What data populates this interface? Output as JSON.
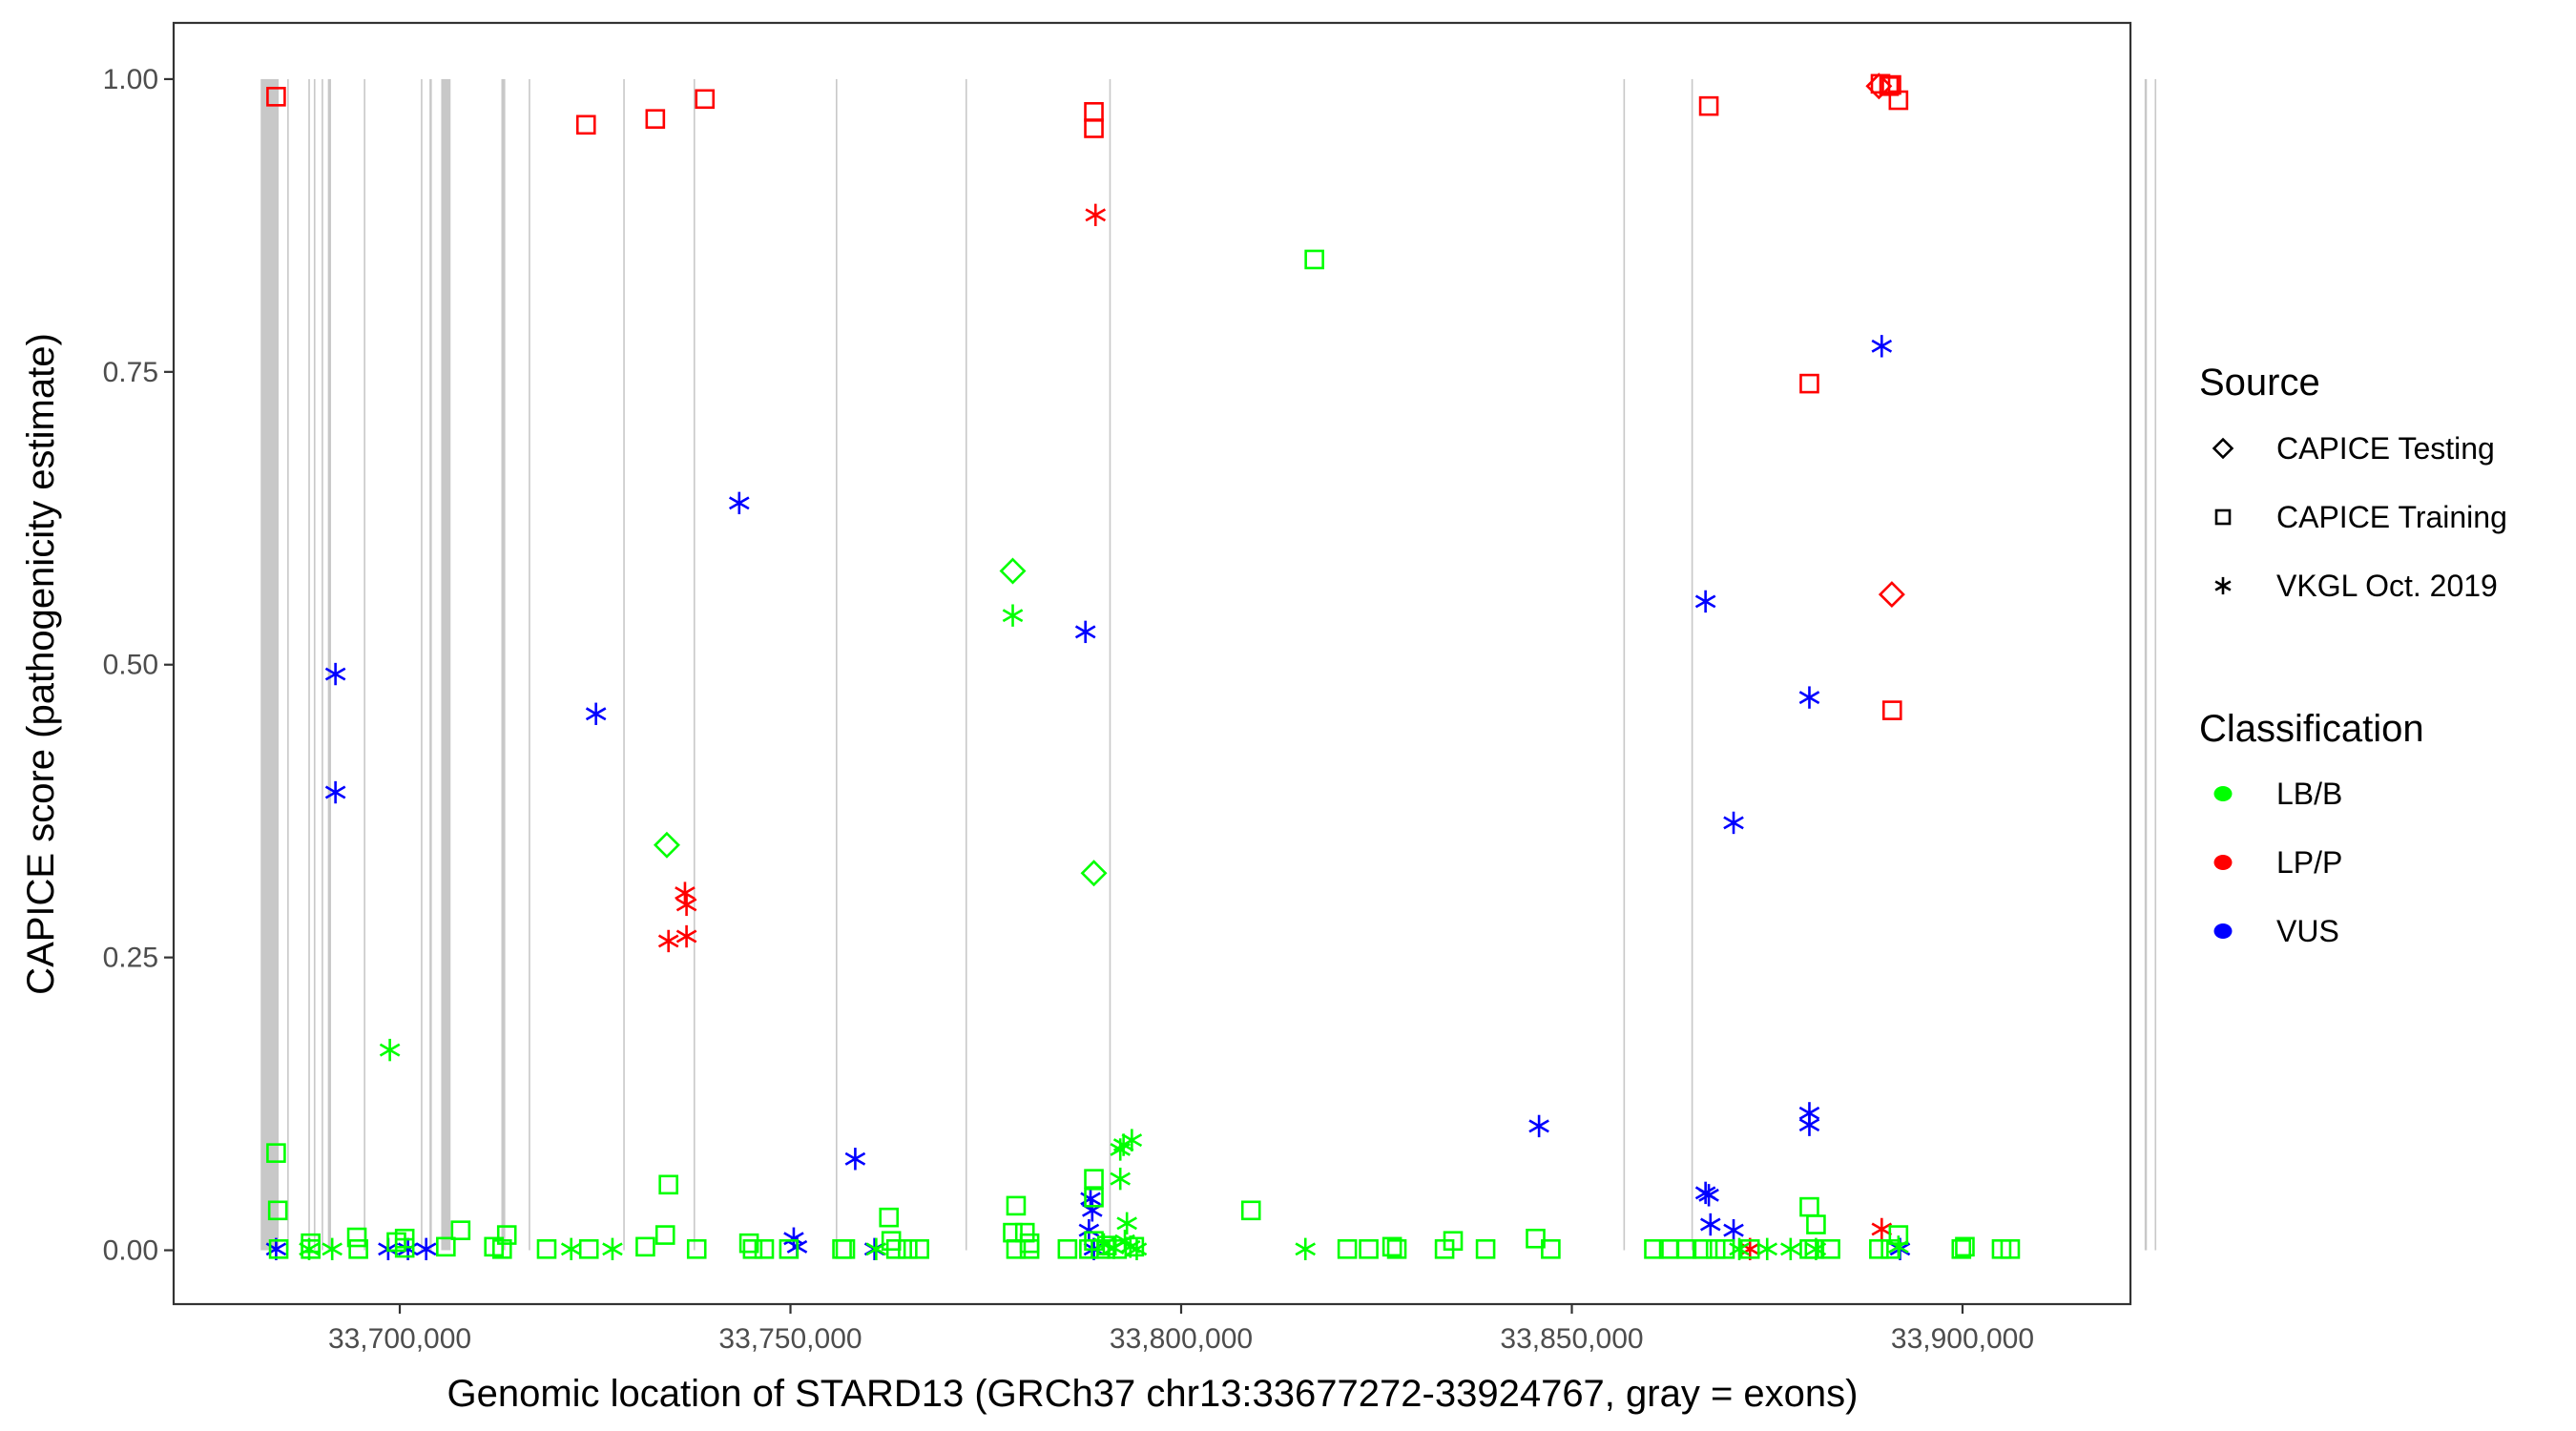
{
  "chart_data": {
    "type": "scatter",
    "title": "",
    "xlabel": "Genomic location of STARD13 (GRCh37 chr13:33677272-33924767, gray = exons)",
    "ylabel": "CAPICE score (pathogenicity estimate)",
    "xlim": [
      33671060,
      33921490
    ],
    "ylim": [
      -0.046,
      1.048
    ],
    "x_ticks": [
      33700000,
      33750000,
      33800000,
      33850000,
      33900000
    ],
    "x_tick_labels": [
      "33,700,000",
      "33,750,000",
      "33,800,000",
      "33,850,000",
      "33,900,000"
    ],
    "y_ticks": [
      0,
      0.25,
      0.5,
      0.75,
      1.0
    ],
    "y_tick_labels": [
      "0.00",
      "0.25",
      "0.50",
      "0.75",
      "1.00"
    ],
    "grid": false,
    "exons": [
      [
        33682200,
        33684500
      ],
      [
        33685600,
        33685700
      ],
      [
        33688300,
        33688500
      ],
      [
        33689000,
        33689200
      ],
      [
        33690000,
        33690100
      ],
      [
        33690800,
        33691200
      ],
      [
        33695400,
        33695500
      ],
      [
        33702700,
        33702800
      ],
      [
        33703800,
        33704100
      ],
      [
        33705300,
        33706500
      ],
      [
        33713000,
        33713500
      ],
      [
        33716500,
        33716600
      ],
      [
        33728600,
        33728700
      ],
      [
        33737600,
        33737700
      ],
      [
        33755800,
        33755900
      ],
      [
        33772400,
        33772500
      ],
      [
        33790800,
        33790900
      ],
      [
        33856600,
        33856700
      ],
      [
        33865300,
        33865400
      ],
      [
        33923300,
        33923600
      ],
      [
        33924600,
        33924767
      ]
    ],
    "legend": {
      "placement": "right",
      "source": {
        "title": "Source",
        "entries": [
          {
            "label": "CAPICE Testing",
            "shape": "diamond"
          },
          {
            "label": "CAPICE Training",
            "shape": "square"
          },
          {
            "label": "VKGL Oct. 2019",
            "shape": "asterisk"
          }
        ]
      },
      "classification": {
        "title": "Classification",
        "entries": [
          {
            "label": "LB/B",
            "color": "#00ff00"
          },
          {
            "label": "LP/P",
            "color": "#ff0000"
          },
          {
            "label": "VUS",
            "color": "#0000ff"
          }
        ]
      }
    },
    "colors": {
      "LB/B": "#00ff00",
      "LP/P": "#ff0000",
      "VUS": "#0000ff",
      "exon": "#c8c8c8"
    },
    "series": [
      {
        "source": "CAPICE Training",
        "classification": "LP/P",
        "points": [
          [
            33684175,
            0.985
          ],
          [
            33723840,
            0.961
          ],
          [
            33732700,
            0.966
          ],
          [
            33739040,
            0.983
          ],
          [
            33788830,
            0.972
          ],
          [
            33788830,
            0.958
          ],
          [
            33867530,
            0.977
          ],
          [
            33880400,
            0.74
          ],
          [
            33891000,
            0.461
          ],
          [
            33889500,
            0.996
          ],
          [
            33890600,
            0.994
          ],
          [
            33891800,
            0.982
          ],
          [
            33890900,
            0.995
          ]
        ]
      },
      {
        "source": "CAPICE Testing",
        "classification": "LP/P",
        "points": [
          [
            33889300,
            0.994
          ],
          [
            33890950,
            0.56
          ]
        ]
      },
      {
        "source": "VKGL Oct. 2019",
        "classification": "LP/P",
        "points": [
          [
            33789040,
            0.884
          ],
          [
            33734390,
            0.264
          ],
          [
            33736500,
            0.305
          ],
          [
            33736700,
            0.295
          ],
          [
            33736700,
            0.268
          ],
          [
            33889660,
            0.018
          ],
          [
            33872800,
            0.001
          ]
        ]
      },
      {
        "source": "VKGL Oct. 2019",
        "classification": "VUS",
        "points": [
          [
            33691770,
            0.492
          ],
          [
            33691770,
            0.391
          ],
          [
            33725110,
            0.458
          ],
          [
            33743440,
            0.638
          ],
          [
            33787750,
            0.528
          ],
          [
            33889660,
            0.772
          ],
          [
            33867110,
            0.554
          ],
          [
            33880400,
            0.472
          ],
          [
            33870700,
            0.365
          ],
          [
            33845800,
            0.106
          ],
          [
            33880400,
            0.117
          ],
          [
            33880400,
            0.107
          ],
          [
            33758290,
            0.078
          ],
          [
            33867110,
            0.049
          ],
          [
            33867530,
            0.047
          ],
          [
            33867740,
            0.022
          ],
          [
            33870700,
            0.017
          ],
          [
            33684175,
            0.001
          ],
          [
            33698520,
            0.001
          ],
          [
            33701050,
            0.001
          ],
          [
            33703380,
            0.001
          ],
          [
            33750420,
            0.01
          ],
          [
            33750850,
            0.003
          ],
          [
            33760760,
            0.001
          ],
          [
            33788400,
            0.044
          ],
          [
            33788620,
            0.034
          ],
          [
            33788200,
            0.017
          ],
          [
            33788830,
            0.001
          ],
          [
            33892000,
            0.001
          ]
        ]
      },
      {
        "source": "CAPICE Testing",
        "classification": "LB/B",
        "points": [
          [
            33778450,
            0.58
          ],
          [
            33734180,
            0.346
          ],
          [
            33788830,
            0.322
          ]
        ]
      },
      {
        "source": "VKGL Oct. 2019",
        "classification": "LB/B",
        "points": [
          [
            33778450,
            0.542
          ],
          [
            33698730,
            0.171
          ],
          [
            33792630,
            0.09
          ],
          [
            33793690,
            0.094
          ],
          [
            33792210,
            0.086
          ],
          [
            33792210,
            0.061
          ],
          [
            33793060,
            0.023
          ],
          [
            33794320,
            0.001
          ],
          [
            33721940,
            0.001
          ],
          [
            33727220,
            0.001
          ],
          [
            33691350,
            0.001
          ],
          [
            33688400,
            0.001
          ],
          [
            33760970,
            0.001
          ],
          [
            33815900,
            0.001
          ],
          [
            33871430,
            0.001
          ],
          [
            33891800,
            0.003
          ],
          [
            33881250,
            0.001
          ],
          [
            33790100,
            0.005
          ],
          [
            33791400,
            0.002
          ],
          [
            33792800,
            0.008
          ],
          [
            33793500,
            0.003
          ],
          [
            33875000,
            0.001
          ],
          [
            33878000,
            0.001
          ]
        ]
      },
      {
        "source": "CAPICE Training",
        "classification": "LB/B",
        "points": [
          [
            33684175,
            0.083
          ],
          [
            33684390,
            0.034
          ],
          [
            33817050,
            0.846
          ],
          [
            33734390,
            0.056
          ],
          [
            33762600,
            0.028
          ],
          [
            33778870,
            0.038
          ],
          [
            33788830,
            0.061
          ],
          [
            33788830,
            0.045
          ],
          [
            33808940,
            0.034
          ],
          [
            33880400,
            0.037
          ],
          [
            33881250,
            0.022
          ],
          [
            33694510,
            0.011
          ],
          [
            33700630,
            0.01
          ],
          [
            33707790,
            0.017
          ],
          [
            33713700,
            0.013
          ],
          [
            33733970,
            0.013
          ],
          [
            33744700,
            0.006
          ],
          [
            33762900,
            0.008
          ],
          [
            33780000,
            0.015
          ],
          [
            33778450,
            0.015
          ],
          [
            33845360,
            0.01
          ],
          [
            33834800,
            0.008
          ],
          [
            33891800,
            0.013
          ],
          [
            33684500,
            0.001
          ],
          [
            33688600,
            0.006
          ],
          [
            33688600,
            0.001
          ],
          [
            33694700,
            0.001
          ],
          [
            33699570,
            0.007
          ],
          [
            33700630,
            0.002
          ],
          [
            33705900,
            0.003
          ],
          [
            33712050,
            0.003
          ],
          [
            33713100,
            0.001
          ],
          [
            33718800,
            0.001
          ],
          [
            33724200,
            0.001
          ],
          [
            33731430,
            0.003
          ],
          [
            33738000,
            0.001
          ],
          [
            33745160,
            0.001
          ],
          [
            33746640,
            0.001
          ],
          [
            33749800,
            0.001
          ],
          [
            33756600,
            0.001
          ],
          [
            33757020,
            0.001
          ],
          [
            33763510,
            0.001
          ],
          [
            33765000,
            0.001
          ],
          [
            33766500,
            0.001
          ],
          [
            33778870,
            0.001
          ],
          [
            33780600,
            0.006
          ],
          [
            33780600,
            0.001
          ],
          [
            33785450,
            0.001
          ],
          [
            33788200,
            0.001
          ],
          [
            33788830,
            0.008
          ],
          [
            33789670,
            0.001
          ],
          [
            33790500,
            0.004
          ],
          [
            33791800,
            0.001
          ],
          [
            33794000,
            0.003
          ],
          [
            33821260,
            0.001
          ],
          [
            33824000,
            0.001
          ],
          [
            33827000,
            0.003
          ],
          [
            33827600,
            0.001
          ],
          [
            33833710,
            0.001
          ],
          [
            33838960,
            0.001
          ],
          [
            33847300,
            0.001
          ],
          [
            33860500,
            0.001
          ],
          [
            33862400,
            0.001
          ],
          [
            33864700,
            0.001
          ],
          [
            33866700,
            0.001
          ],
          [
            33868400,
            0.001
          ],
          [
            33869600,
            0.001
          ],
          [
            33872800,
            0.001
          ],
          [
            33880400,
            0.001
          ],
          [
            33881050,
            0.001
          ],
          [
            33883100,
            0.001
          ],
          [
            33889300,
            0.001
          ],
          [
            33890800,
            0.001
          ],
          [
            33899850,
            0.001
          ],
          [
            33900300,
            0.003
          ],
          [
            33905000,
            0.001
          ],
          [
            33906100,
            0.001
          ]
        ]
      }
    ]
  }
}
